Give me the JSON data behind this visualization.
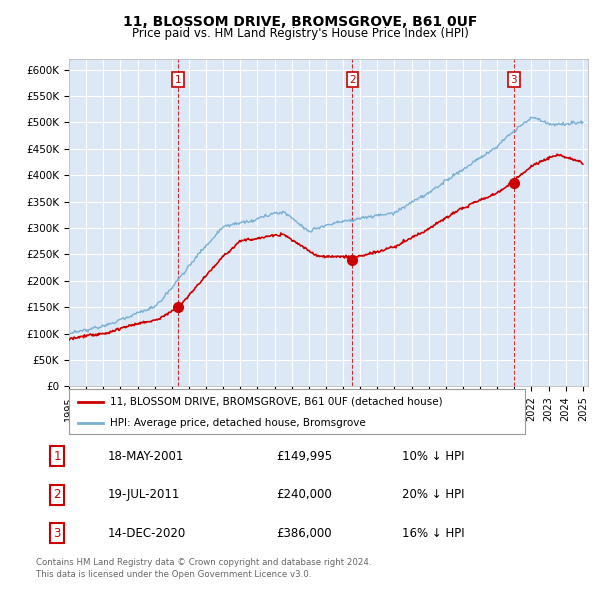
{
  "title1": "11, BLOSSOM DRIVE, BROMSGROVE, B61 0UF",
  "title2": "Price paid vs. HM Land Registry's House Price Index (HPI)",
  "ylim": [
    0,
    620000
  ],
  "yticks": [
    0,
    50000,
    100000,
    150000,
    200000,
    250000,
    300000,
    350000,
    400000,
    450000,
    500000,
    550000,
    600000
  ],
  "ytick_labels": [
    "£0",
    "£50K",
    "£100K",
    "£150K",
    "£200K",
    "£250K",
    "£300K",
    "£350K",
    "£400K",
    "£450K",
    "£500K",
    "£550K",
    "£600K"
  ],
  "red_line_color": "#cc0000",
  "blue_line_color": "#7ab0d4",
  "sale_markers": [
    {
      "year": 2001.38,
      "price": 149995,
      "label": "1"
    },
    {
      "year": 2011.55,
      "price": 240000,
      "label": "2"
    },
    {
      "year": 2020.96,
      "price": 386000,
      "label": "3"
    }
  ],
  "legend_red": "11, BLOSSOM DRIVE, BROMSGROVE, B61 0UF (detached house)",
  "legend_blue": "HPI: Average price, detached house, Bromsgrove",
  "table_rows": [
    {
      "num": "1",
      "date": "18-MAY-2001",
      "price": "£149,995",
      "hpi": "10% ↓ HPI"
    },
    {
      "num": "2",
      "date": "19-JUL-2011",
      "price": "£240,000",
      "hpi": "20% ↓ HPI"
    },
    {
      "num": "3",
      "date": "14-DEC-2020",
      "price": "£386,000",
      "hpi": "16% ↓ HPI"
    }
  ],
  "footnote1": "Contains HM Land Registry data © Crown copyright and database right 2024.",
  "footnote2": "This data is licensed under the Open Government Licence v3.0.",
  "bg_color": "#ffffff",
  "plot_bg_color": "#dce8f5",
  "grid_color": "#ffffff"
}
